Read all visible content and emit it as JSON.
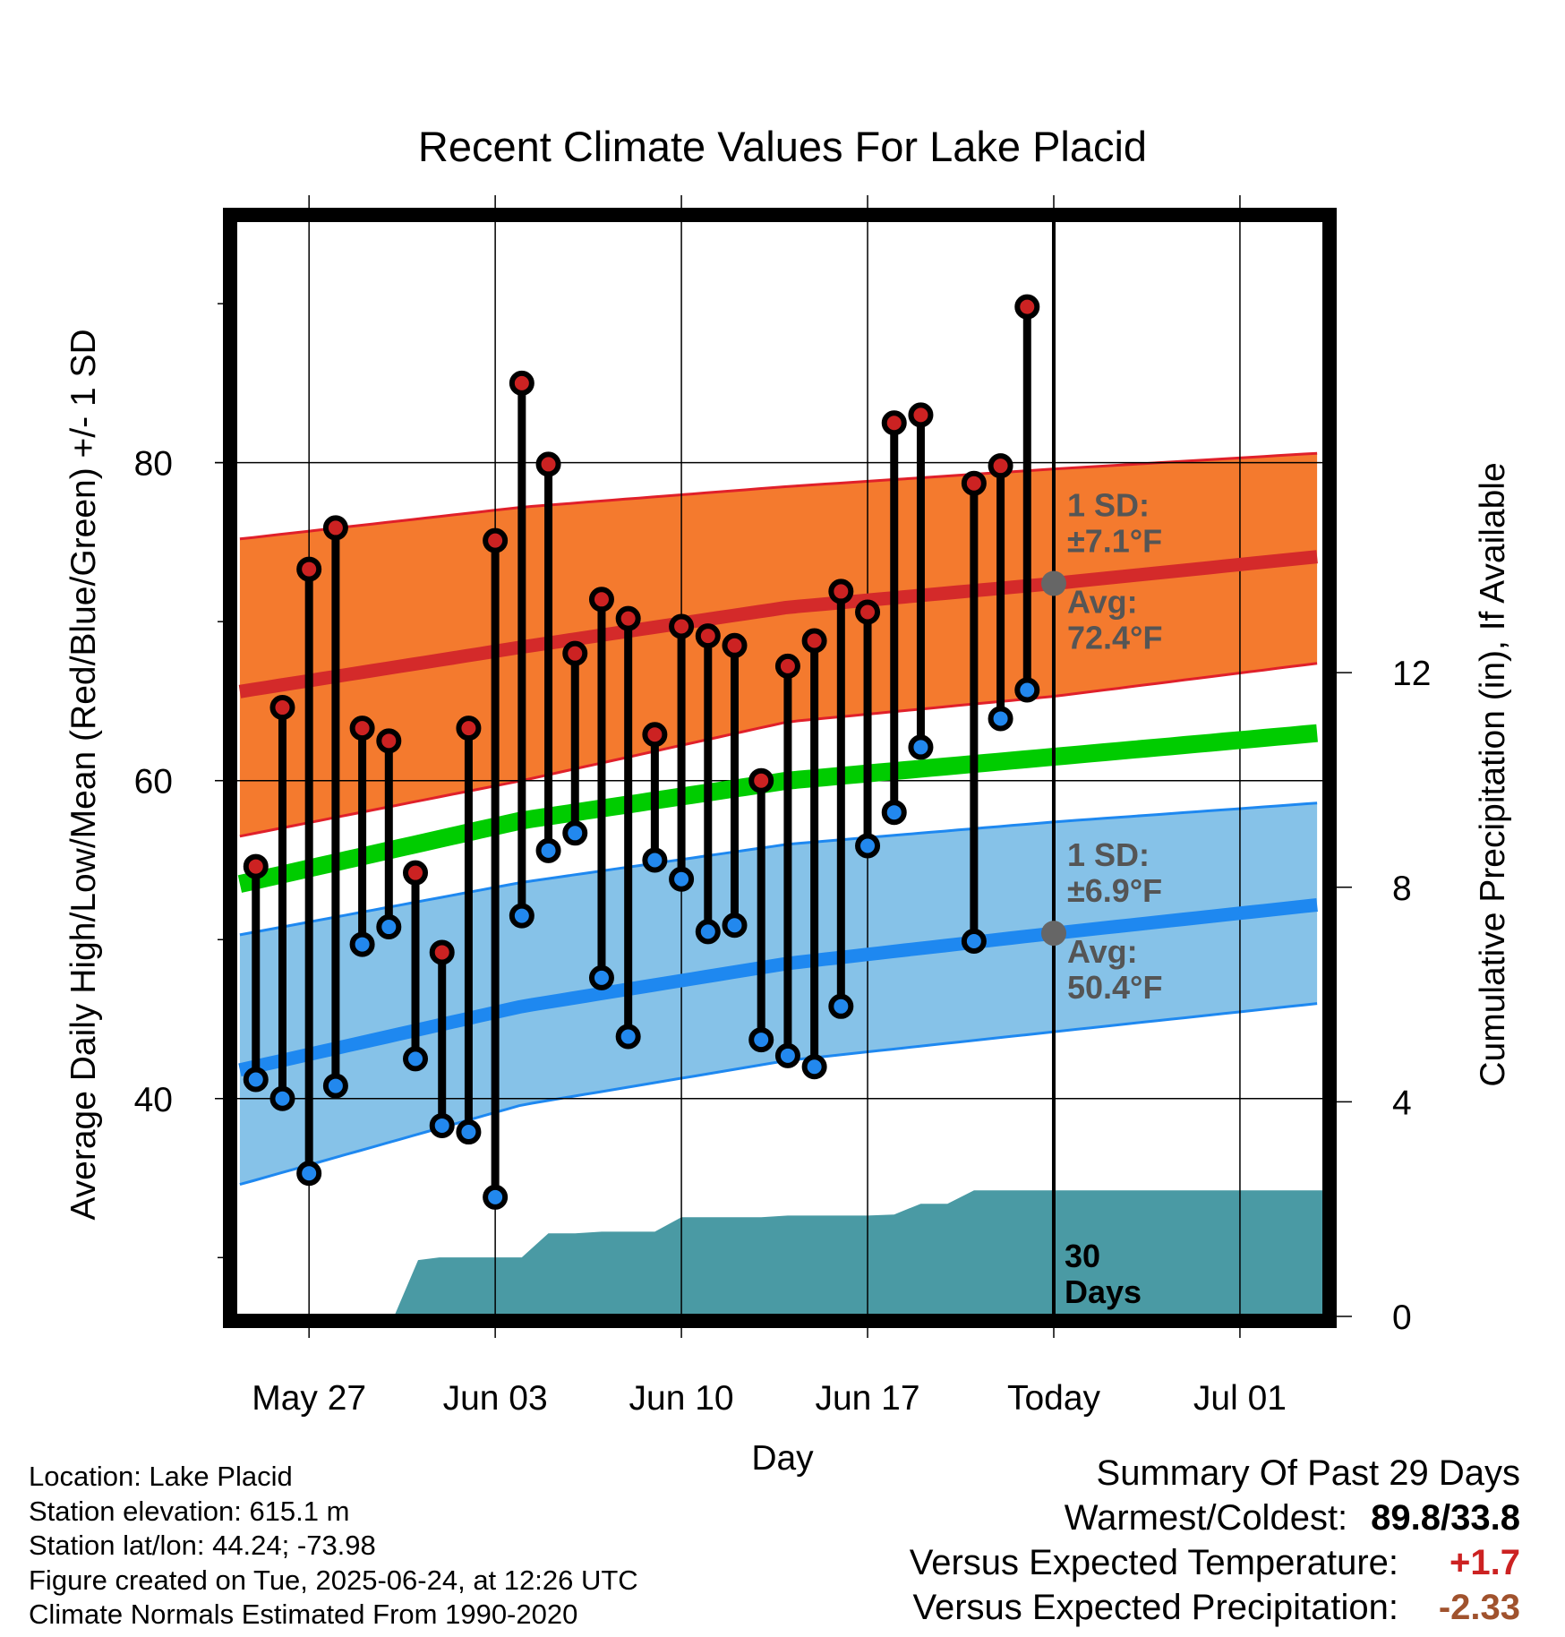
{
  "chart_data": {
    "type": "line",
    "title": "Recent Climate Values For Lake Placid",
    "xlabel": "Day",
    "ylabel": "Average Daily High/Low/Mean (Red/Blue/Green) +/- 1 SD",
    "y2label": "Cumulative Precipitation (in), If Available",
    "x_ticks": [
      {
        "label": "May 27",
        "day": 2
      },
      {
        "label": "Jun 03",
        "day": 9
      },
      {
        "label": "Jun 10",
        "day": 16
      },
      {
        "label": "Jun 17",
        "day": 23
      },
      {
        "label": "Today",
        "day": 30
      },
      {
        "label": "Jul 01",
        "day": 37
      }
    ],
    "xlim": [
      -0.8,
      40.2
    ],
    "ylim": [
      26.3,
      95.3
    ],
    "y_ticks": [
      40,
      60,
      80
    ],
    "y_minor_ticks": [
      30,
      50,
      70,
      90
    ],
    "y2lim": [
      0,
      20.45
    ],
    "y2_ticks": [
      0,
      4,
      8,
      12
    ],
    "grid": true,
    "today_day": 30,
    "days": [
      0,
      1,
      2,
      3,
      4,
      5,
      6,
      7,
      8,
      9,
      10,
      11,
      12,
      13,
      14,
      15,
      16,
      17,
      18,
      19,
      20,
      21,
      22,
      23,
      24,
      25,
      26,
      27,
      28,
      29
    ],
    "highs": [
      54.6,
      64.6,
      73.3,
      75.9,
      63.3,
      62.5,
      54.2,
      49.2,
      63.3,
      75.1,
      85.0,
      79.9,
      68.0,
      71.4,
      70.2,
      62.9,
      69.7,
      69.1,
      68.5,
      60.0,
      67.2,
      68.8,
      71.9,
      70.6,
      82.5,
      83.0,
      null,
      78.7,
      79.8,
      89.8
    ],
    "lows": [
      41.2,
      40.0,
      35.3,
      40.8,
      49.7,
      50.8,
      42.5,
      38.3,
      37.9,
      33.8,
      51.5,
      55.6,
      56.7,
      47.6,
      43.9,
      55.0,
      53.8,
      50.5,
      50.9,
      43.7,
      42.7,
      42.0,
      45.8,
      55.9,
      58.0,
      62.1,
      null,
      49.9,
      63.9,
      65.7
    ],
    "normals": {
      "days": [
        -0.6,
        10,
        20,
        30,
        40
      ],
      "high_mean": [
        65.6,
        68.4,
        70.9,
        72.4,
        74.1
      ],
      "high_plus_sd": [
        75.2,
        77.2,
        78.5,
        79.6,
        80.6
      ],
      "high_minus_sd": [
        56.5,
        60.0,
        63.7,
        65.3,
        67.4
      ],
      "mean": [
        53.5,
        57.5,
        60.0,
        61.5,
        63.0
      ],
      "low_mean": [
        41.8,
        45.8,
        48.5,
        50.4,
        52.2
      ],
      "low_plus_sd": [
        50.3,
        53.6,
        56.0,
        57.4,
        58.6
      ],
      "low_minus_sd": [
        34.6,
        39.6,
        42.4,
        44.2,
        46.0
      ]
    },
    "precip": {
      "days": [
        -0.8,
        5.2,
        6.1,
        6.9,
        10.0,
        11.0,
        12.0,
        13.0,
        15.0,
        16.0,
        18.0,
        19.0,
        20.0,
        22.0,
        23.0,
        24.0,
        25.0,
        26.0,
        27.0,
        28.0,
        40.2
      ],
      "values": [
        0.0,
        0.0,
        1.05,
        1.1,
        1.1,
        1.55,
        1.55,
        1.58,
        1.58,
        1.85,
        1.85,
        1.85,
        1.88,
        1.88,
        1.88,
        1.9,
        2.1,
        2.1,
        2.35,
        2.35,
        2.35
      ]
    },
    "annotations": {
      "high_sd_label": "1 SD:",
      "high_sd_value": "±7.1°F",
      "high_avg_label": "Avg:",
      "high_avg_value": "72.4°F",
      "high_avg_marker": 72.4,
      "low_sd_label": "1 SD:",
      "low_sd_value": "±6.9°F",
      "low_avg_label": "Avg:",
      "low_avg_value": "50.4°F",
      "low_avg_marker": 50.4,
      "days_label_line1": "30",
      "days_label_line2": "Days"
    },
    "colors": {
      "high_band": "#f47a2e",
      "high_edge": "#e0202a",
      "high_mean": "#d42a2a",
      "mean": "#00cc00",
      "low_band": "#86c2e8",
      "low_edge": "#1e88f0",
      "low_mean": "#1e88f0",
      "high_dot": "#cc2222",
      "low_dot": "#2288ee",
      "precip": "#4a9aa4",
      "annotation": "#555555"
    }
  },
  "info": {
    "location": "Location: Lake Placid",
    "elevation": "Station elevation: 615.1 m",
    "latlon": "Station lat/lon: 44.24; -73.98",
    "created": "Figure created on Tue, 2025-06-24, at 12:26 UTC",
    "normals_source": "Climate Normals Estimated From 1990-2020"
  },
  "summary": {
    "title": "Summary Of Past 29 Days",
    "warmest_label": "Warmest/Coldest:",
    "warmest_value": "89.8/33.8",
    "temp_label": "Versus Expected Temperature:",
    "temp_value": "+1.7",
    "temp_color": "#cc2222",
    "precip_label": "Versus Expected Precipitation:",
    "precip_value": "-2.33",
    "precip_color": "#a0522d"
  }
}
